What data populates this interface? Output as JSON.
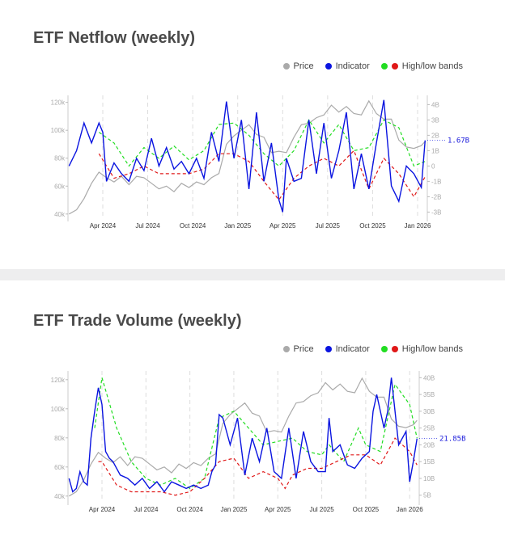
{
  "legend": {
    "price": "Price",
    "indicator": "Indicator",
    "bands": "High/low bands"
  },
  "colors": {
    "price": "#aaaaaa",
    "indicator": "#0a14e0",
    "high": "#22dd22",
    "low": "#e01818"
  },
  "chart_data": [
    {
      "type": "line",
      "title": "ETF Netflow (weekly)",
      "x_unit": "months since Jan 2024",
      "xticks": [
        {
          "m": 3,
          "label": "Apr 2024"
        },
        {
          "m": 6,
          "label": "Jul 2024"
        },
        {
          "m": 9,
          "label": "Oct 2024"
        },
        {
          "m": 12,
          "label": "Jan 2025"
        },
        {
          "m": 15,
          "label": "Apr 2025"
        },
        {
          "m": 18,
          "label": "Jul 2025"
        },
        {
          "m": 21,
          "label": "Oct 2025"
        },
        {
          "m": 24,
          "label": "Jan 2026"
        }
      ],
      "xlim": [
        0.68,
        24.54
      ],
      "left_axis": {
        "ticks": [
          "40k",
          "60k",
          "80k",
          "100k",
          "120k"
        ],
        "values": [
          40,
          60,
          80,
          100,
          120
        ],
        "ylim": [
          37,
          125
        ]
      },
      "right_axis": {
        "ticks": [
          "-3B",
          "-2B",
          "-1B",
          "0",
          "1B",
          "2B",
          "3B",
          "4B"
        ],
        "values": [
          -3,
          -2,
          -1,
          0,
          1,
          2,
          3,
          4
        ],
        "ylim": [
          -3.4,
          4.6
        ]
      },
      "last_value_label": "1.67B",
      "price": {
        "x": [
          0.75,
          1.25,
          1.75,
          2.25,
          2.75,
          3.25,
          3.75,
          4.25,
          4.75,
          5.25,
          5.75,
          6.25,
          6.75,
          7.25,
          7.75,
          8.25,
          8.75,
          9.25,
          9.75,
          10.25,
          10.75,
          11.25,
          11.75,
          12.25,
          12.75,
          13.25,
          13.75,
          14.25,
          14.75,
          15.25,
          15.75,
          16.25,
          16.75,
          17.25,
          17.75,
          18.25,
          18.75,
          19.25,
          19.75,
          20.25,
          20.75,
          21.25,
          21.75,
          22.25,
          22.75,
          23.25,
          23.75,
          24.25,
          24.5
        ],
        "y": [
          40,
          43,
          51,
          62,
          70,
          66,
          63,
          67,
          61,
          67,
          66,
          62,
          58,
          60,
          56,
          62,
          59,
          63,
          61,
          66,
          69,
          90,
          96,
          100,
          104,
          97,
          95,
          84,
          85,
          84,
          95,
          104,
          105,
          109,
          111,
          118,
          113,
          117,
          112,
          111,
          121,
          112,
          108,
          108,
          93,
          88,
          87,
          89,
          92
        ]
      },
      "indicator": {
        "x": [
          0.75,
          1.25,
          1.75,
          2.25,
          2.75,
          3.0,
          3.25,
          3.75,
          4.25,
          4.75,
          5.25,
          5.75,
          6.25,
          6.75,
          7.25,
          7.75,
          8.25,
          8.75,
          9.25,
          9.75,
          10.25,
          10.75,
          11.25,
          11.75,
          12.25,
          12.75,
          13.25,
          13.75,
          14.25,
          14.75,
          15.0,
          15.25,
          15.75,
          16.25,
          16.75,
          17.25,
          17.75,
          18.25,
          18.75,
          19.25,
          19.75,
          20.25,
          20.75,
          21.25,
          21.75,
          22.25,
          22.75,
          23.25,
          23.75,
          24.25,
          24.5
        ],
        "y": [
          0,
          1.0,
          2.8,
          1.5,
          2.8,
          2.2,
          -1.0,
          0.2,
          -0.5,
          -1.0,
          0.5,
          -0.3,
          1.8,
          0.0,
          1.2,
          -0.2,
          0.3,
          -0.5,
          0.5,
          -0.8,
          2.2,
          0.3,
          4.2,
          0.5,
          3.0,
          -1.5,
          3.5,
          -1.0,
          1.5,
          -2.2,
          -3.0,
          0.5,
          -1.0,
          -0.8,
          3.0,
          -0.5,
          2.8,
          -0.8,
          1.0,
          3.5,
          -1.5,
          0.8,
          -1.5,
          1.5,
          4.3,
          -1.3,
          -2.3,
          0.0,
          -0.5,
          -1.4,
          1.67
        ]
      },
      "high_band": {
        "x": [
          2.75,
          3.75,
          4.75,
          5.75,
          6.75,
          7.75,
          8.75,
          9.75,
          10.75,
          11.75,
          12.75,
          13.75,
          14.75,
          15.75,
          16.75,
          17.75,
          18.75,
          19.75,
          20.75,
          21.75,
          22.75,
          23.75,
          24.5
        ],
        "y": [
          2.2,
          1.5,
          0.0,
          1.2,
          0.5,
          1.3,
          0.4,
          1.0,
          2.7,
          2.8,
          2.0,
          0.8,
          0.0,
          1.0,
          3.0,
          1.5,
          2.7,
          1.0,
          1.2,
          3.0,
          2.5,
          0.0,
          0.3
        ]
      },
      "low_band": {
        "x": [
          2.75,
          3.75,
          4.75,
          5.75,
          6.75,
          7.75,
          8.75,
          9.75,
          10.75,
          11.75,
          12.75,
          13.75,
          14.75,
          15.75,
          16.75,
          17.75,
          18.75,
          19.75,
          20.75,
          21.75,
          22.75,
          23.75,
          24.5
        ],
        "y": [
          0.8,
          -0.8,
          -0.5,
          0.0,
          -0.5,
          -0.5,
          -0.5,
          -0.2,
          0.8,
          0.8,
          0.3,
          -1.0,
          -2.2,
          -0.8,
          0.0,
          0.5,
          0.0,
          1.0,
          -1.5,
          0.5,
          -0.5,
          -2.0,
          -0.7
        ]
      }
    },
    {
      "type": "line",
      "title": "ETF Trade Volume (weekly)",
      "x_unit": "months since Jan 2024",
      "xticks": [
        {
          "m": 3,
          "label": "Apr 2024"
        },
        {
          "m": 6,
          "label": "Jul 2024"
        },
        {
          "m": 9,
          "label": "Oct 2024"
        },
        {
          "m": 12,
          "label": "Jan 2025"
        },
        {
          "m": 15,
          "label": "Apr 2025"
        },
        {
          "m": 18,
          "label": "Jul 2025"
        },
        {
          "m": 21,
          "label": "Oct 2025"
        },
        {
          "m": 24,
          "label": "Jan 2026"
        }
      ],
      "xlim": [
        0.68,
        24.54
      ],
      "left_axis": {
        "ticks": [
          "40k",
          "60k",
          "80k",
          "100k",
          "120k"
        ],
        "values": [
          40,
          60,
          80,
          100,
          120
        ],
        "ylim": [
          36,
          126
        ]
      },
      "right_axis": {
        "ticks": [
          "5B",
          "10B",
          "15B",
          "20B",
          "25B",
          "30B",
          "35B",
          "40B"
        ],
        "values": [
          5,
          10,
          15,
          20,
          25,
          30,
          35,
          40
        ],
        "ylim": [
          3,
          42
        ]
      },
      "last_value_label": "21.85B",
      "price": {
        "x": [
          0.75,
          1.25,
          1.75,
          2.25,
          2.75,
          3.25,
          3.75,
          4.25,
          4.75,
          5.25,
          5.75,
          6.25,
          6.75,
          7.25,
          7.75,
          8.25,
          8.75,
          9.25,
          9.75,
          10.25,
          10.75,
          11.25,
          11.75,
          12.25,
          12.75,
          13.25,
          13.75,
          14.25,
          14.75,
          15.25,
          15.75,
          16.25,
          16.75,
          17.25,
          17.75,
          18.25,
          18.75,
          19.25,
          19.75,
          20.25,
          20.75,
          21.25,
          21.75,
          22.25,
          22.75,
          23.25,
          23.75,
          24.25,
          24.5
        ],
        "y": [
          40,
          43,
          51,
          62,
          70,
          66,
          63,
          67,
          61,
          67,
          66,
          62,
          58,
          60,
          56,
          62,
          59,
          63,
          61,
          66,
          69,
          90,
          96,
          100,
          104,
          97,
          95,
          84,
          85,
          84,
          95,
          104,
          105,
          109,
          111,
          118,
          113,
          117,
          112,
          111,
          121,
          112,
          108,
          108,
          93,
          88,
          87,
          89,
          92
        ]
      },
      "indicator": {
        "x": [
          0.75,
          1.0,
          1.25,
          1.5,
          1.75,
          2.0,
          2.25,
          2.5,
          2.75,
          3.0,
          3.25,
          3.5,
          3.75,
          4.25,
          4.75,
          5.25,
          5.75,
          6.25,
          6.75,
          7.25,
          7.75,
          8.25,
          8.75,
          9.25,
          9.75,
          10.25,
          10.5,
          10.75,
          11.0,
          11.25,
          11.75,
          12.25,
          12.75,
          13.25,
          13.75,
          14.25,
          14.75,
          15.25,
          15.75,
          16.25,
          16.75,
          17.25,
          17.75,
          18.25,
          18.5,
          18.75,
          19.25,
          19.75,
          20.25,
          20.75,
          21.25,
          21.5,
          21.75,
          22.25,
          22.5,
          22.75,
          23.25,
          23.75,
          24.0,
          24.25,
          24.5
        ],
        "y": [
          10,
          6,
          7,
          12,
          9,
          8,
          22,
          30,
          37,
          32,
          18,
          16,
          15,
          11,
          10,
          8,
          10,
          7,
          9,
          6,
          9,
          8,
          7,
          8,
          7,
          8,
          12,
          14,
          29,
          28,
          20,
          28,
          11,
          22,
          15,
          25,
          12,
          10,
          25,
          10,
          24,
          15,
          12,
          12,
          28,
          18,
          20,
          14,
          13,
          16,
          18,
          30,
          35,
          25,
          30,
          40,
          20,
          24,
          9,
          15,
          21.85
        ]
      },
      "high_band": {
        "x": [
          2.5,
          3.0,
          4.0,
          5.0,
          6.0,
          7.0,
          8.0,
          9.0,
          10.0,
          11.0,
          12.0,
          13.0,
          14.0,
          15.0,
          16.0,
          17.0,
          18.0,
          18.5,
          19.5,
          20.5,
          21.0,
          22.0,
          23.0,
          24.0,
          24.5
        ],
        "y": [
          25,
          40,
          25,
          15,
          10,
          8,
          10,
          7,
          10,
          28,
          30,
          25,
          20,
          21,
          22,
          18,
          17,
          20,
          15,
          25,
          20,
          18,
          38,
          32,
          22
        ]
      },
      "low_band": {
        "x": [
          2.75,
          3.0,
          4.0,
          5.0,
          6.0,
          7.0,
          8.0,
          9.0,
          10.0,
          11.0,
          12.0,
          13.0,
          14.0,
          15.0,
          15.5,
          16.0,
          17.0,
          18.0,
          19.0,
          20.0,
          21.0,
          22.0,
          23.0,
          24.0,
          24.5
        ],
        "y": [
          15,
          15,
          8,
          6,
          6,
          6,
          5,
          6,
          10,
          15,
          16,
          10,
          12,
          10,
          7,
          11,
          13,
          13,
          15,
          17,
          17,
          14,
          22,
          18,
          14
        ]
      }
    }
  ]
}
